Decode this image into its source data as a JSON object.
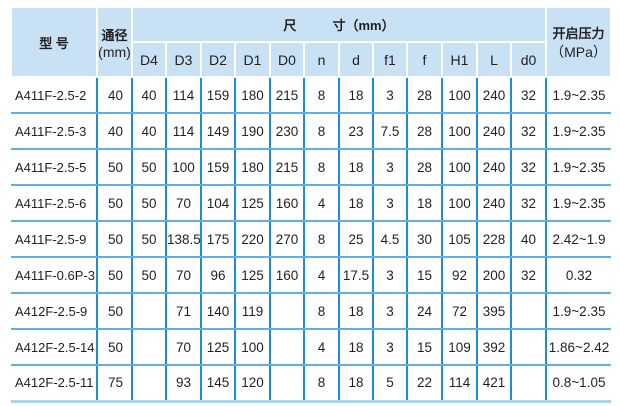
{
  "header": {
    "model": "型  号",
    "bore": "通径",
    "bore_unit": "(mm)",
    "dimensions": "尺          寸（mm）",
    "pressure": "开启压力",
    "pressure_unit": "（MPa）",
    "columns": [
      "D4",
      "D3",
      "D2",
      "D1",
      "D0",
      "n",
      "d",
      "f1",
      "f",
      "H1",
      "L",
      "d0"
    ]
  },
  "rows": [
    [
      "A411F-2.5-2",
      "40",
      "40",
      "114",
      "159",
      "180",
      "215",
      "8",
      "18",
      "3",
      "28",
      "100",
      "240",
      "32",
      "1.9~2.35"
    ],
    [
      "A411F-2.5-3",
      "40",
      "40",
      "114",
      "149",
      "190",
      "230",
      "8",
      "23",
      "7.5",
      "28",
      "100",
      "240",
      "32",
      "1.9~2.35"
    ],
    [
      "A411F-2.5-5",
      "50",
      "50",
      "100",
      "159",
      "180",
      "215",
      "8",
      "18",
      "3",
      "28",
      "100",
      "240",
      "32",
      "1.9~2.35"
    ],
    [
      "A411F-2.5-6",
      "50",
      "50",
      "70",
      "104",
      "125",
      "160",
      "4",
      "18",
      "3",
      "18",
      "100",
      "240",
      "32",
      "1.9~2.35"
    ],
    [
      "A411F-2.5-9",
      "50",
      "50",
      "138.5",
      "175",
      "220",
      "270",
      "8",
      "25",
      "4.5",
      "30",
      "105",
      "228",
      "40",
      "2.42~1.9"
    ],
    [
      "A411F-0.6P-3",
      "50",
      "50",
      "70",
      "96",
      "125",
      "160",
      "4",
      "17.5",
      "3",
      "15",
      "92",
      "200",
      "32",
      "0.32"
    ],
    [
      "A412F-2.5-9",
      "50",
      "",
      "71",
      "140",
      "119",
      "",
      "8",
      "18",
      "3",
      "24",
      "72",
      "395",
      "",
      "1.9~2.35"
    ],
    [
      "A412F-2.5-14",
      "50",
      "",
      "70",
      "125",
      "100",
      "",
      "4",
      "18",
      "3",
      "15",
      "109",
      "392",
      "",
      "1.86~2.42"
    ],
    [
      "A412F-2.5-11",
      "75",
      "",
      "93",
      "145",
      "120",
      "",
      "8",
      "18",
      "5",
      "22",
      "114",
      "421",
      "",
      "0.8~1.05"
    ]
  ]
}
